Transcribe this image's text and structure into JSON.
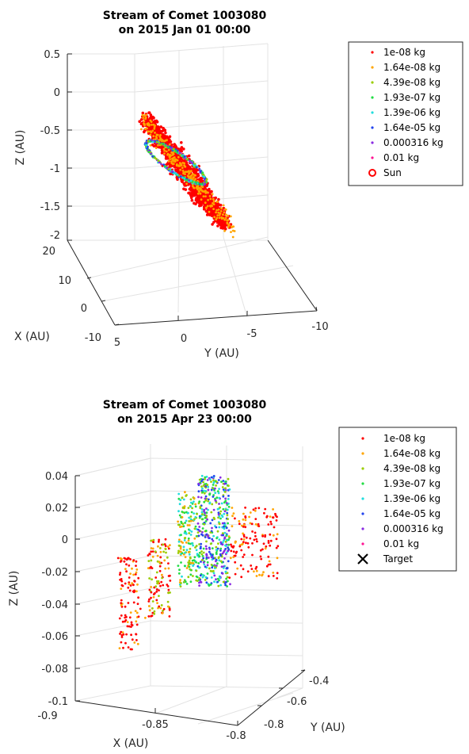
{
  "chart_data": [
    {
      "type": "scatter",
      "title": [
        "Stream of Comet 1003080",
        "on 2015 Jan 01 00:00"
      ],
      "xlabel": "X (AU)",
      "ylabel": "Y (AU)",
      "zlabel": "Z (AU)",
      "xlim": [
        -10,
        20
      ],
      "ylim": [
        -10,
        5
      ],
      "zlim": [
        -2,
        0.5
      ],
      "x_ticks": [
        "-10",
        "0",
        "10",
        "20"
      ],
      "y_ticks": [
        "5",
        "0",
        "-5",
        "-10"
      ],
      "z_ticks": [
        "0.5",
        "0",
        "-0.5",
        "-1",
        "-1.5",
        "-2"
      ],
      "grid": true,
      "legend_position": "outside-right",
      "series": [
        {
          "name": "1e-08 kg",
          "color": "#ff0000",
          "marker": "dot"
        },
        {
          "name": "1.64e-08 kg",
          "color": "#ffa500",
          "marker": "dot"
        },
        {
          "name": "4.39e-08 kg",
          "color": "#9acd00",
          "marker": "dot"
        },
        {
          "name": "1.93e-07 kg",
          "color": "#22dd44",
          "marker": "dot"
        },
        {
          "name": "1.39e-06 kg",
          "color": "#22dddd",
          "marker": "dot"
        },
        {
          "name": "1.64e-05 kg",
          "color": "#2244ee",
          "marker": "dot"
        },
        {
          "name": "0.000316 kg",
          "color": "#8a2be2",
          "marker": "dot"
        },
        {
          "name": "0.01 kg",
          "color": "#ff1493",
          "marker": "dot"
        },
        {
          "name": "Sun",
          "color": "#ff0000",
          "marker": "circle"
        }
      ]
    },
    {
      "type": "scatter",
      "title": [
        "Stream of Comet 1003080",
        "on 2015 Apr 23 00:00"
      ],
      "xlabel": "X (AU)",
      "ylabel": "Y (AU)",
      "zlabel": "Z (AU)",
      "xlim": [
        -0.9,
        -0.8
      ],
      "ylim": [
        -0.8,
        -0.4
      ],
      "zlim": [
        -0.1,
        0.04
      ],
      "x_ticks": [
        "-0.9",
        "-0.85",
        "-0.8"
      ],
      "y_ticks": [
        "-0.8",
        "-0.6",
        "-0.4"
      ],
      "z_ticks": [
        "0.04",
        "0.02",
        "0",
        "-0.02",
        "-0.04",
        "-0.06",
        "-0.08",
        "-0.1"
      ],
      "grid": true,
      "legend_position": "outside-right",
      "series": [
        {
          "name": "1e-08 kg",
          "color": "#ff0000",
          "marker": "dot"
        },
        {
          "name": "1.64e-08 kg",
          "color": "#ffa500",
          "marker": "dot"
        },
        {
          "name": "4.39e-08 kg",
          "color": "#9acd00",
          "marker": "dot"
        },
        {
          "name": "1.93e-07 kg",
          "color": "#22dd44",
          "marker": "dot"
        },
        {
          "name": "1.39e-06 kg",
          "color": "#22dddd",
          "marker": "dot"
        },
        {
          "name": "1.64e-05 kg",
          "color": "#2244ee",
          "marker": "dot"
        },
        {
          "name": "0.000316 kg",
          "color": "#8a2be2",
          "marker": "dot"
        },
        {
          "name": "0.01 kg",
          "color": "#ff1493",
          "marker": "dot"
        },
        {
          "name": "Target",
          "color": "#000000",
          "marker": "x"
        }
      ]
    }
  ]
}
